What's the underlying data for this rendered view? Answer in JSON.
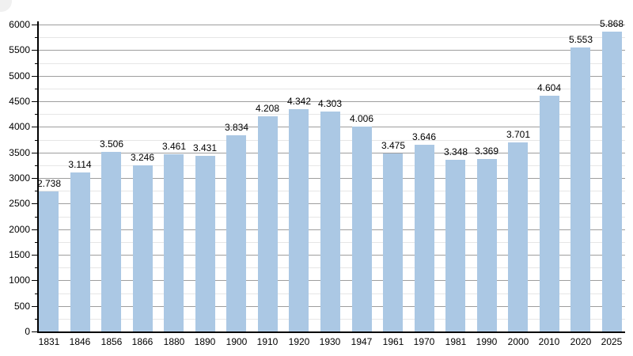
{
  "chart_data": {
    "type": "bar",
    "title": "",
    "xlabel": "",
    "ylabel": "",
    "categories": [
      "1831",
      "1846",
      "1856",
      "1866",
      "1880",
      "1890",
      "1900",
      "1910",
      "1920",
      "1930",
      "1947",
      "1961",
      "1970",
      "1981",
      "1990",
      "2000",
      "2010",
      "2020",
      "2025"
    ],
    "values": [
      2738,
      3114,
      3506,
      3246,
      3461,
      3431,
      3834,
      4208,
      4342,
      4303,
      4006,
      3475,
      3646,
      3348,
      3369,
      3701,
      4604,
      5553,
      5868
    ],
    "value_labels": [
      "2.738",
      "3.114",
      "3.506",
      "3.246",
      "3.461",
      "3.431",
      "3.834",
      "4.208",
      "4.342",
      "4.303",
      "4.006",
      "3.475",
      "3.646",
      "3.348",
      "3.369",
      "3.701",
      "4.604",
      "5.553",
      "5.868"
    ],
    "ylim": [
      0,
      6000
    ],
    "ytick_major_interval": 500,
    "ytick_minor_interval": 250,
    "ytick_labels": [
      "0",
      "500",
      "1000",
      "1500",
      "2000",
      "2500",
      "3000",
      "3500",
      "4000",
      "4500",
      "5000",
      "5500",
      "6000"
    ],
    "grid": "on",
    "legend_position": "none",
    "colors": {
      "bar_fill": "#abc8e4",
      "major_gridline": "#9e9e9e",
      "minor_gridline": "#e6e6e6",
      "axis": "#000000",
      "text": "#000000",
      "background": "#ffffff"
    }
  }
}
